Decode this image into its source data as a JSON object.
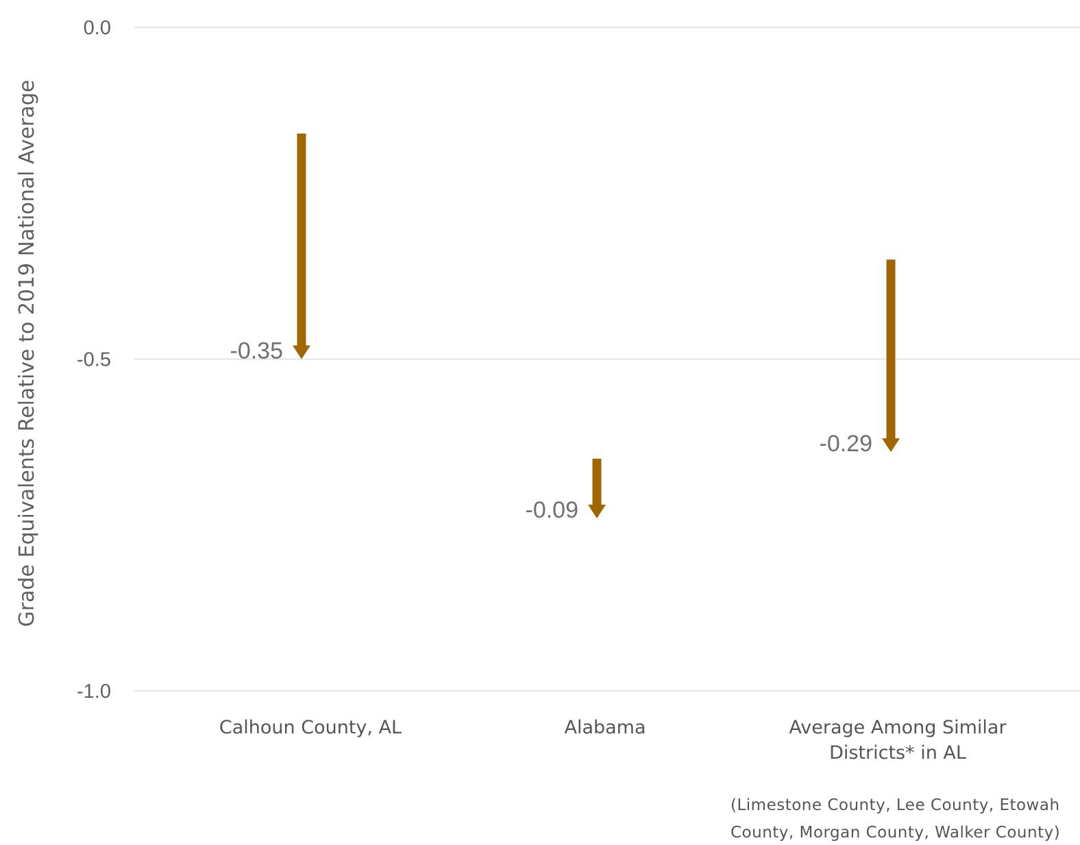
{
  "chart_data": {
    "type": "arrow",
    "ylabel": "Grade Equivalents Relative to 2019 National Average",
    "ylim": [
      -1.0,
      0.0
    ],
    "yticks": [
      0.0,
      -0.5,
      -1.0
    ],
    "ytick_labels": [
      "0.0",
      "-0.5",
      "-1.0"
    ],
    "grid": true,
    "categories": [
      [
        "Calhoun County, AL"
      ],
      [
        "Alabama"
      ],
      [
        "Average Among Similar",
        "Districts* in AL"
      ]
    ],
    "series": [
      {
        "start": [
          -0.16,
          -0.65,
          -0.35
        ],
        "end": [
          -0.5,
          -0.74,
          -0.64
        ],
        "change_labels": [
          "-0.35",
          "-0.09",
          "-0.29"
        ]
      }
    ],
    "arrow_color": "#a06600",
    "footnote": [
      "(Limestone County, Lee County, Etowah",
      "County, Morgan County, Walker County)"
    ]
  }
}
